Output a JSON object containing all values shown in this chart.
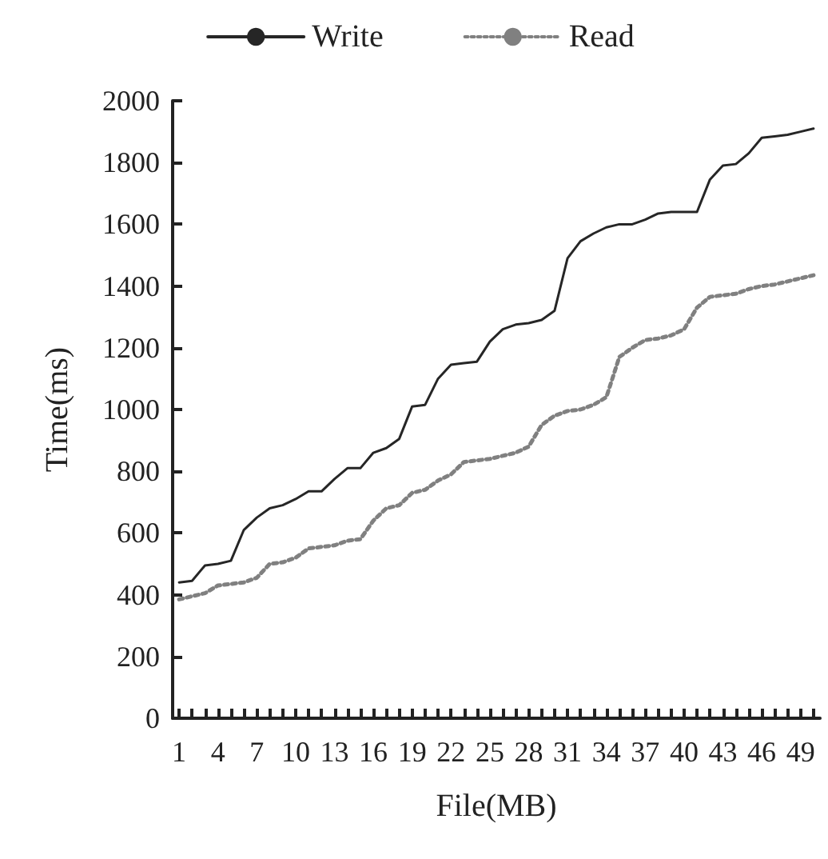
{
  "chart_data": {
    "type": "line",
    "xlabel": "File(MB)",
    "ylabel": "Time(ms)",
    "categories": [
      "1",
      null,
      null,
      "4",
      null,
      null,
      "7",
      null,
      null,
      "10",
      null,
      null,
      "13",
      null,
      null,
      "16",
      null,
      null,
      "19",
      null,
      null,
      "22",
      null,
      null,
      "25",
      null,
      null,
      "28",
      null,
      null,
      "31",
      null,
      null,
      "34",
      null,
      null,
      "37",
      null,
      null,
      "40",
      null,
      null,
      "43",
      null,
      null,
      "46",
      null,
      null,
      "49",
      null
    ],
    "series": [
      {
        "name": "Write",
        "color": "#262626",
        "line_style": "solid",
        "values": [
          440,
          445,
          495,
          500,
          510,
          610,
          650,
          680,
          690,
          710,
          735,
          735,
          775,
          810,
          810,
          860,
          875,
          905,
          1010,
          1015,
          1100,
          1145,
          1150,
          1155,
          1220,
          1260,
          1275,
          1280,
          1290,
          1320,
          1490,
          1545,
          1570,
          1590,
          1600,
          1600,
          1615,
          1635,
          1640,
          1640,
          1640,
          1745,
          1790,
          1795,
          1830,
          1880,
          1885,
          1890,
          1900,
          1910
        ]
      },
      {
        "name": "Read",
        "color": "#808080",
        "line_style": "dotted",
        "values": [
          385,
          395,
          405,
          430,
          435,
          440,
          455,
          500,
          505,
          520,
          550,
          555,
          560,
          575,
          580,
          640,
          680,
          690,
          730,
          740,
          770,
          790,
          830,
          835,
          840,
          850,
          860,
          880,
          950,
          980,
          995,
          1000,
          1015,
          1040,
          1170,
          1200,
          1225,
          1230,
          1240,
          1260,
          1330,
          1365,
          1370,
          1375,
          1390,
          1400,
          1405,
          1415,
          1425,
          1435
        ]
      }
    ],
    "ylim": [
      0,
      2000
    ],
    "yticks": [
      0,
      200,
      400,
      600,
      800,
      1000,
      1200,
      1400,
      1600,
      1800,
      2000
    ],
    "grid": false,
    "legend": "top",
    "marker": "none"
  }
}
